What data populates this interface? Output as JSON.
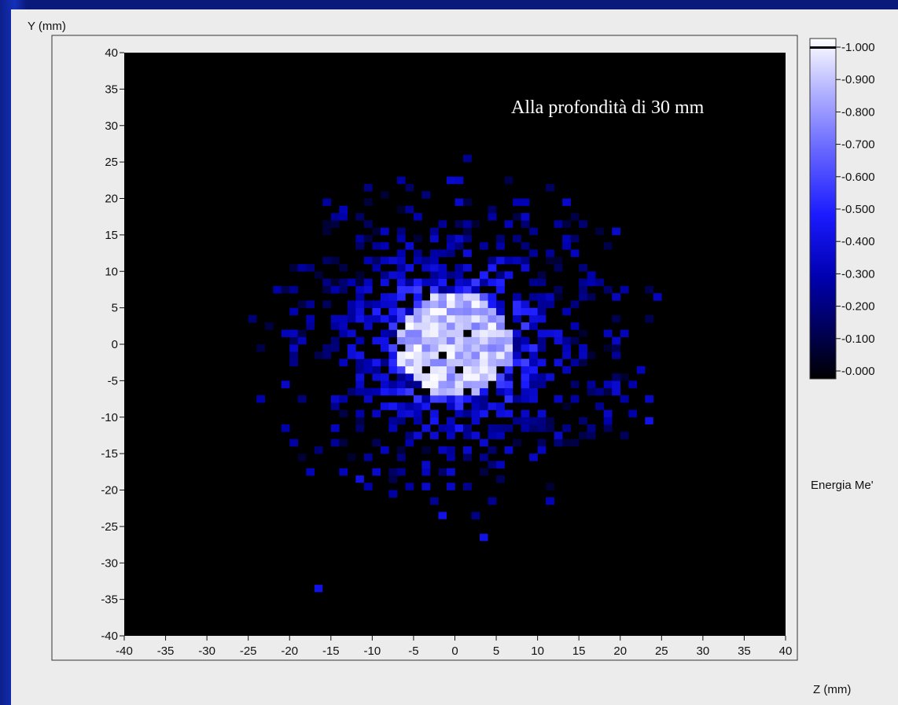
{
  "chart_data": {
    "type": "heatmap",
    "title": "",
    "annotation": "Alla profondità di 30 mm",
    "xlabel": "Z (mm)",
    "ylabel": "Y (mm)",
    "xlim": [
      -40,
      40
    ],
    "ylim": [
      -40,
      40
    ],
    "xticks": [
      -40,
      -35,
      -30,
      -25,
      -20,
      -15,
      -10,
      -5,
      0,
      5,
      10,
      15,
      20,
      25,
      30,
      35,
      40
    ],
    "yticks": [
      40,
      35,
      30,
      25,
      20,
      15,
      10,
      5,
      0,
      -5,
      -10,
      -15,
      -20,
      -25,
      -30,
      -35,
      -40
    ],
    "xtick_labels": [
      "-40",
      "-35",
      "-30",
      "-25",
      "-20",
      "-15",
      "-10",
      "-5",
      "0",
      "5",
      "10",
      "15",
      "20",
      "25",
      "30",
      "35",
      "40"
    ],
    "ytick_labels": [
      "40",
      "35",
      "30",
      "25",
      "20",
      "15",
      "10",
      "5",
      "0",
      "-5",
      "-10",
      "-15",
      "-20",
      "-25",
      "-30",
      "-35",
      "-40"
    ],
    "bin_size_mm": 1,
    "distribution": {
      "center_z": 0,
      "center_y": 0,
      "core_radius_mm": 7,
      "halo_radius_mm": 14,
      "max_extent_mm": 20,
      "isolated_points": [
        [
          -17,
          -34
        ],
        [
          23,
          -11
        ],
        [
          -2,
          -24
        ],
        [
          3,
          -27
        ],
        [
          -12,
          -19
        ]
      ]
    },
    "colorbar": {
      "label": "Energia MeV",
      "label_visible": "Energia Me'",
      "min": 0,
      "max": 1,
      "ticks": [
        "1.000",
        "0.900",
        "0.800",
        "0.700",
        "0.600",
        "0.500",
        "0.400",
        "0.300",
        "0.200",
        "0.100",
        "0.000"
      ],
      "colors": [
        "#000000",
        "#00004a",
        "#0000b0",
        "#1a1aff",
        "#6a6aff",
        "#b5b5ff",
        "#ffffff"
      ]
    },
    "grid": false
  }
}
